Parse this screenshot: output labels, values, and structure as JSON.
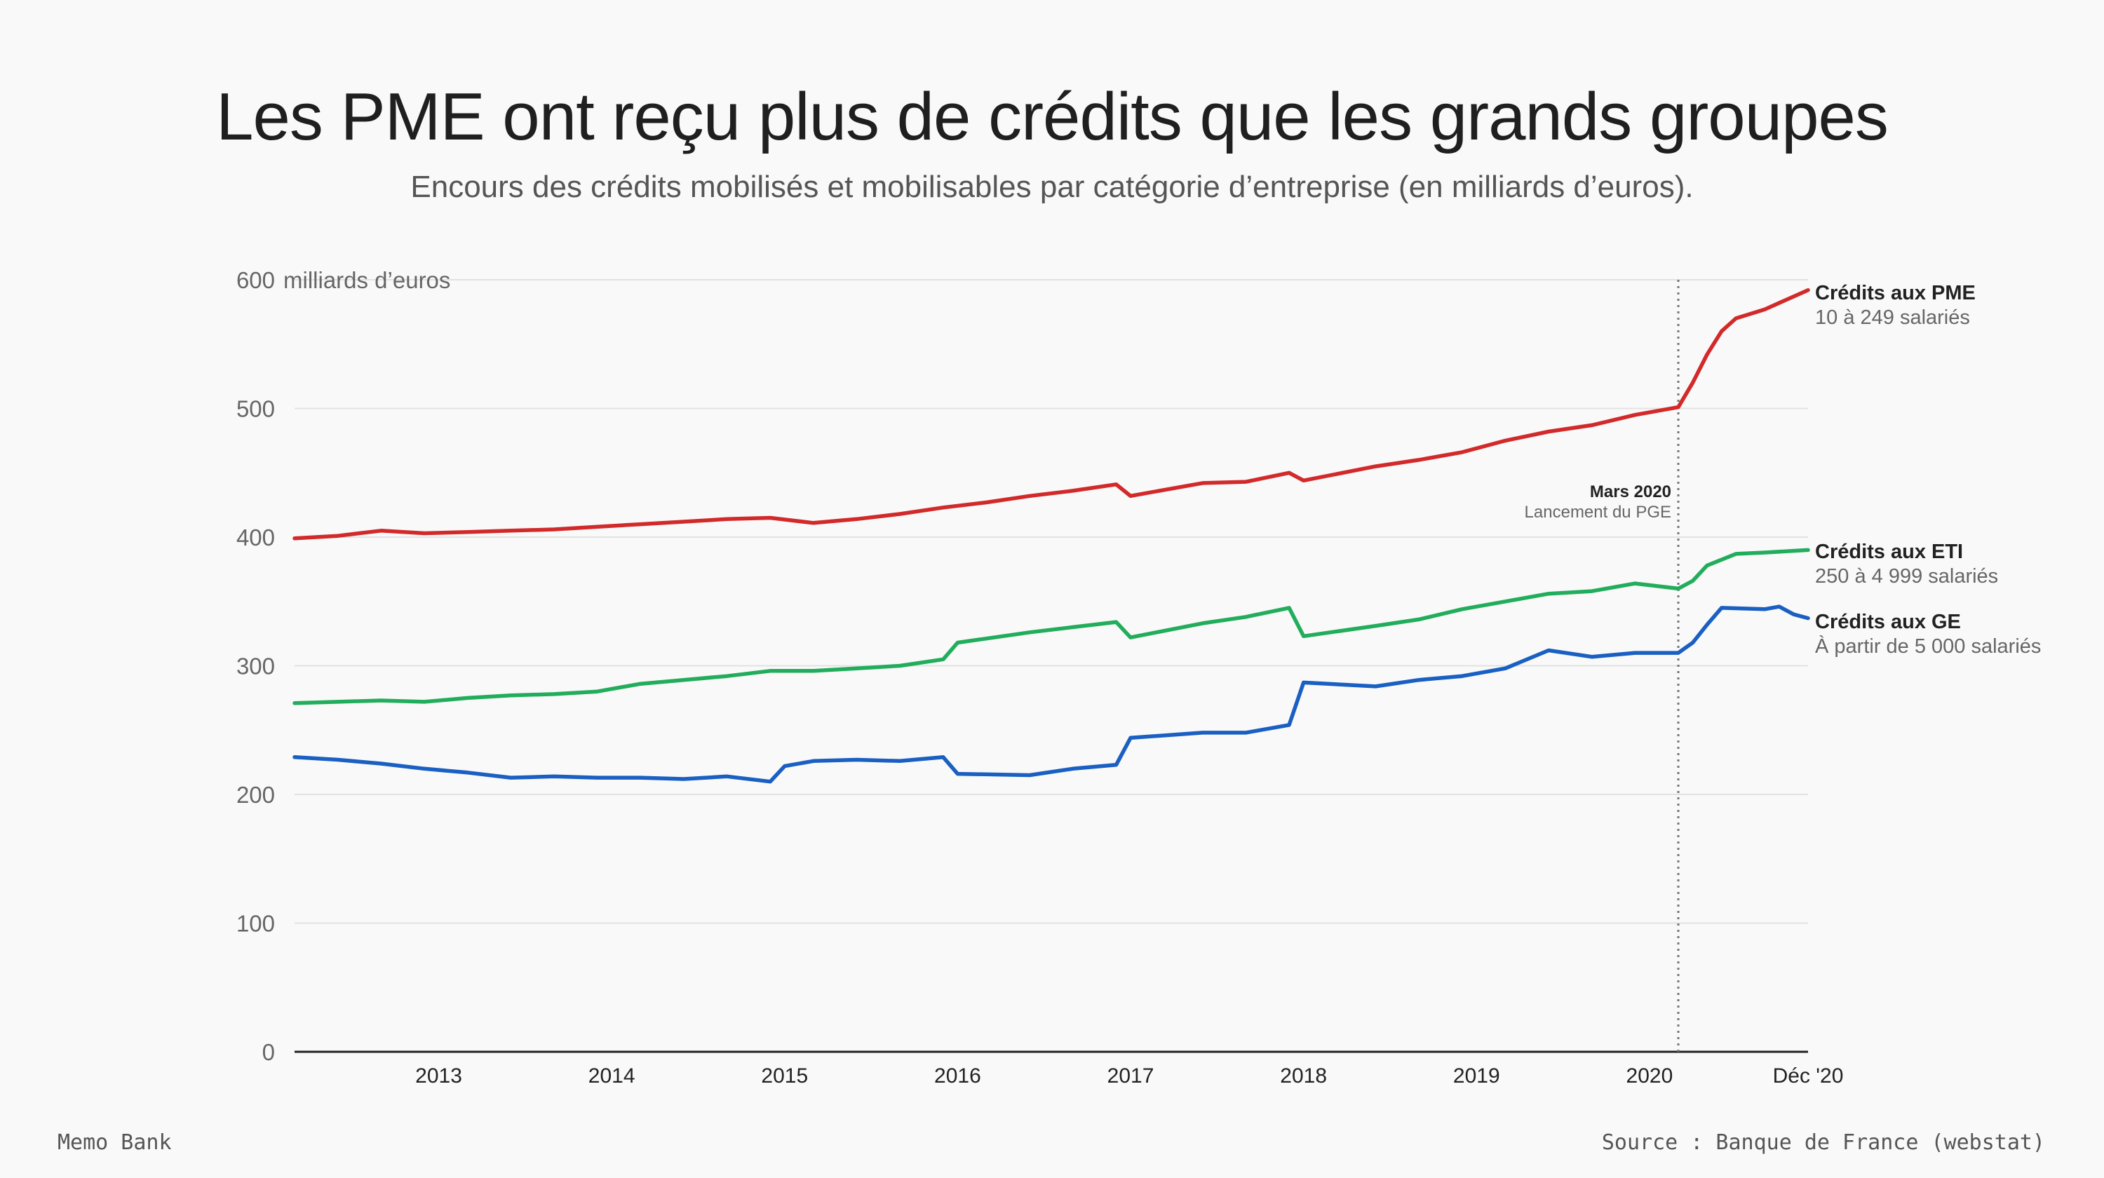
{
  "header": {
    "title": "Les PME ont reçu plus de crédits que les grands groupes",
    "subtitle": "Encours des crédits mobilisés et mobilisables par catégorie d’entreprise (en milliards d’euros)."
  },
  "footer": {
    "left": "Memo Bank",
    "right": "Source : Banque de France (webstat)"
  },
  "chart_data": {
    "type": "line",
    "title": "Les PME ont reçu plus de crédits que les grands groupes",
    "subtitle": "Encours des crédits mobilisés et mobilisables par catégorie d’entreprise (en milliards d’euros).",
    "ylabel": "milliards d’euros",
    "ylim": [
      0,
      600
    ],
    "yticks": [
      "0",
      "100",
      "200",
      "300",
      "400",
      "500",
      "600"
    ],
    "x_start": "2012-03",
    "x_end": "2020-12",
    "xticks": [
      {
        "date": "2013-01",
        "label": "2013"
      },
      {
        "date": "2014-01",
        "label": "2014"
      },
      {
        "date": "2015-01",
        "label": "2015"
      },
      {
        "date": "2016-01",
        "label": "2016"
      },
      {
        "date": "2017-01",
        "label": "2017"
      },
      {
        "date": "2018-01",
        "label": "2018"
      },
      {
        "date": "2019-01",
        "label": "2019"
      },
      {
        "date": "2020-01",
        "label": "2020"
      },
      {
        "date": "2020-12",
        "label": "Déc '20"
      }
    ],
    "grid": true,
    "annotation": {
      "date": "2020-03",
      "title": "Mars 2020",
      "subtitle": "Lancement du PGE"
    },
    "series": [
      {
        "name": "Crédits aux PME",
        "subtitle": "10 à 249 salariés",
        "color": "#d22a2a",
        "points": [
          [
            "2012-03",
            399
          ],
          [
            "2012-06",
            401
          ],
          [
            "2012-09",
            405
          ],
          [
            "2012-12",
            403
          ],
          [
            "2013-03",
            404
          ],
          [
            "2013-06",
            405
          ],
          [
            "2013-09",
            406
          ],
          [
            "2013-12",
            408
          ],
          [
            "2014-03",
            410
          ],
          [
            "2014-06",
            412
          ],
          [
            "2014-09",
            414
          ],
          [
            "2014-12",
            415
          ],
          [
            "2015-03",
            411
          ],
          [
            "2015-06",
            414
          ],
          [
            "2015-09",
            418
          ],
          [
            "2015-12",
            423
          ],
          [
            "2016-03",
            427
          ],
          [
            "2016-06",
            432
          ],
          [
            "2016-09",
            436
          ],
          [
            "2016-12",
            441
          ],
          [
            "2017-01",
            432
          ],
          [
            "2017-06",
            442
          ],
          [
            "2017-09",
            443
          ],
          [
            "2017-12",
            450
          ],
          [
            "2018-01",
            444
          ],
          [
            "2018-06",
            455
          ],
          [
            "2018-09",
            460
          ],
          [
            "2018-12",
            466
          ],
          [
            "2019-03",
            475
          ],
          [
            "2019-06",
            482
          ],
          [
            "2019-09",
            487
          ],
          [
            "2019-12",
            495
          ],
          [
            "2020-03",
            501
          ],
          [
            "2020-04",
            520
          ],
          [
            "2020-05",
            542
          ],
          [
            "2020-06",
            560
          ],
          [
            "2020-07",
            570
          ],
          [
            "2020-09",
            577
          ],
          [
            "2020-12",
            592
          ]
        ]
      },
      {
        "name": "Crédits aux ETI",
        "subtitle": "250 à 4 999 salariés",
        "color": "#22ad5c",
        "points": [
          [
            "2012-03",
            271
          ],
          [
            "2012-06",
            272
          ],
          [
            "2012-09",
            273
          ],
          [
            "2012-12",
            272
          ],
          [
            "2013-03",
            275
          ],
          [
            "2013-06",
            277
          ],
          [
            "2013-09",
            278
          ],
          [
            "2013-12",
            280
          ],
          [
            "2014-03",
            286
          ],
          [
            "2014-06",
            289
          ],
          [
            "2014-09",
            292
          ],
          [
            "2014-12",
            296
          ],
          [
            "2015-03",
            296
          ],
          [
            "2015-06",
            298
          ],
          [
            "2015-09",
            300
          ],
          [
            "2015-12",
            305
          ],
          [
            "2016-01",
            318
          ],
          [
            "2016-06",
            326
          ],
          [
            "2016-09",
            330
          ],
          [
            "2016-12",
            334
          ],
          [
            "2017-01",
            322
          ],
          [
            "2017-06",
            333
          ],
          [
            "2017-09",
            338
          ],
          [
            "2017-12",
            345
          ],
          [
            "2018-01",
            323
          ],
          [
            "2018-06",
            331
          ],
          [
            "2018-09",
            336
          ],
          [
            "2018-12",
            344
          ],
          [
            "2019-03",
            350
          ],
          [
            "2019-06",
            356
          ],
          [
            "2019-09",
            358
          ],
          [
            "2019-12",
            364
          ],
          [
            "2020-03",
            360
          ],
          [
            "2020-04",
            366
          ],
          [
            "2020-05",
            378
          ],
          [
            "2020-07",
            387
          ],
          [
            "2020-09",
            388
          ],
          [
            "2020-12",
            390
          ]
        ]
      },
      {
        "name": "Crédits aux GE",
        "subtitle": "À partir de 5 000 salariés",
        "color": "#1a5fc2",
        "points": [
          [
            "2012-03",
            229
          ],
          [
            "2012-06",
            227
          ],
          [
            "2012-09",
            224
          ],
          [
            "2012-12",
            220
          ],
          [
            "2013-03",
            217
          ],
          [
            "2013-06",
            213
          ],
          [
            "2013-09",
            214
          ],
          [
            "2013-12",
            213
          ],
          [
            "2014-03",
            213
          ],
          [
            "2014-06",
            212
          ],
          [
            "2014-09",
            214
          ],
          [
            "2014-12",
            210
          ],
          [
            "2015-01",
            222
          ],
          [
            "2015-03",
            226
          ],
          [
            "2015-06",
            227
          ],
          [
            "2015-09",
            226
          ],
          [
            "2015-12",
            229
          ],
          [
            "2016-01",
            216
          ],
          [
            "2016-06",
            215
          ],
          [
            "2016-09",
            220
          ],
          [
            "2016-12",
            223
          ],
          [
            "2017-01",
            244
          ],
          [
            "2017-06",
            248
          ],
          [
            "2017-09",
            248
          ],
          [
            "2017-12",
            254
          ],
          [
            "2018-01",
            287
          ],
          [
            "2018-06",
            284
          ],
          [
            "2018-09",
            289
          ],
          [
            "2018-12",
            292
          ],
          [
            "2019-03",
            298
          ],
          [
            "2019-06",
            312
          ],
          [
            "2019-09",
            307
          ],
          [
            "2019-12",
            310
          ],
          [
            "2020-03",
            310
          ],
          [
            "2020-04",
            318
          ],
          [
            "2020-05",
            332
          ],
          [
            "2020-06",
            345
          ],
          [
            "2020-09",
            344
          ],
          [
            "2020-10",
            346
          ],
          [
            "2020-11",
            340
          ],
          [
            "2020-12",
            337
          ]
        ]
      }
    ]
  }
}
